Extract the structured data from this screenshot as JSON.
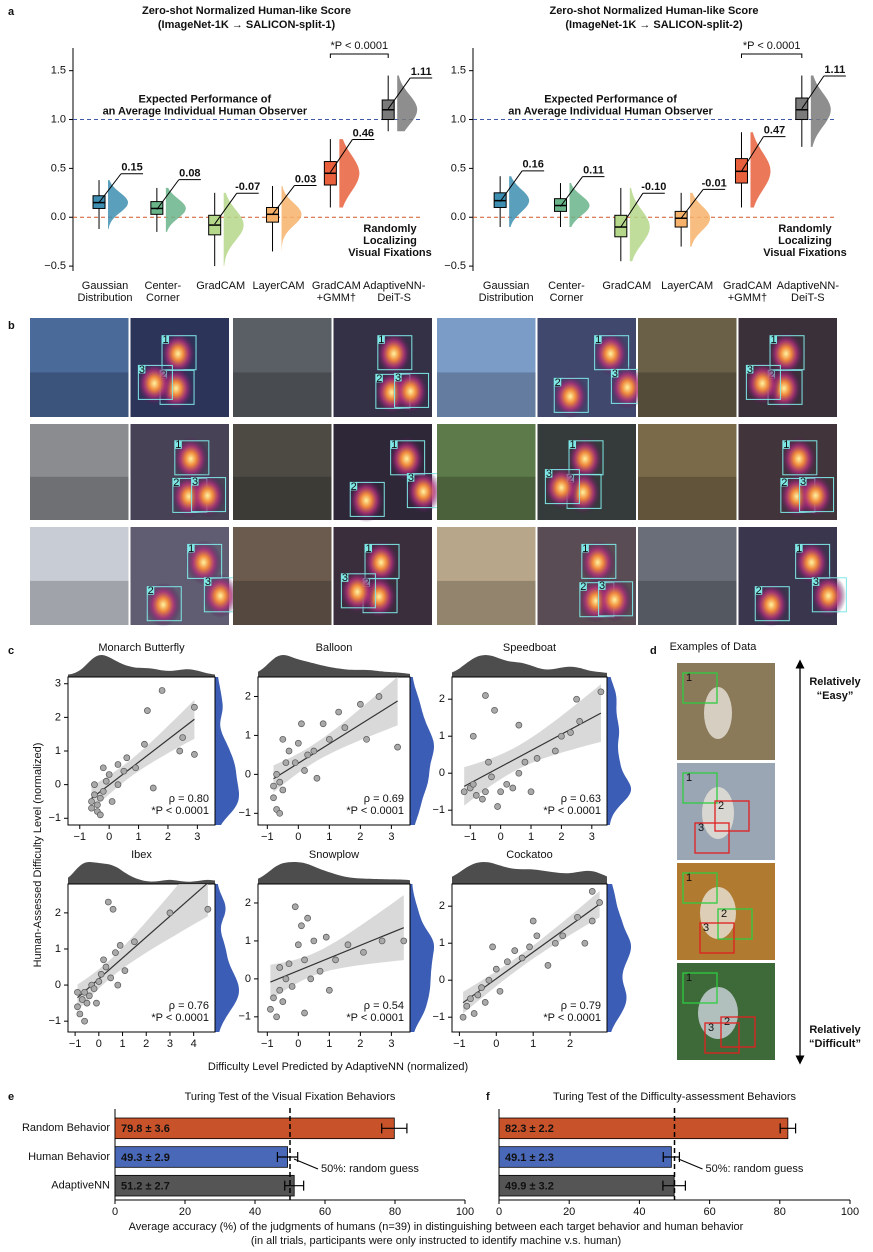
{
  "panel_labels": [
    "a",
    "b",
    "c",
    "d",
    "e",
    "f"
  ],
  "image_grid": {
    "fixation_labels": [
      "1",
      "2",
      "3"
    ]
  },
  "examples": {
    "title": "Examples of Data",
    "easy": [
      "Relatively",
      "“Easy”"
    ],
    "difficult": [
      "Relatively",
      "“Difficult”"
    ]
  },
  "shared_labels": {
    "c_y": "Human-Assessed Difficulty Level (normalized)",
    "c_x": "Difficulty Level Predicted by AdaptiveNN (normalized)",
    "ef_x": [
      "Average accuracy (%) of the judgments of humans (n=39) in distinguishing between each target behavior and human behavior",
      "(in all trials, participants were only instructed to identify machine v.s. human)"
    ]
  },
  "chart_data": [
    {
      "type": "box",
      "title": [
        "Zero-shot Normalized Human-like Score",
        "(ImageNet-1K → SALICON-split-1)"
      ],
      "categories": [
        [
          "Gaussian",
          "Distribution"
        ],
        [
          "Center-",
          "Corner"
        ],
        [
          "GradCAM"
        ],
        [
          "LayerCAM"
        ],
        [
          "GradCAM",
          "+GMM†"
        ],
        [
          "AdaptiveNN-",
          "DeiT-S"
        ]
      ],
      "ylim": [
        -0.55,
        1.65
      ],
      "yticks": [
        {
          "value": -0.5,
          "label": "−0.5"
        },
        {
          "value": 0,
          "label": "0.0"
        },
        0.5,
        {
          "value": 1,
          "label": "1.0"
        },
        1.5
      ],
      "boxes": [
        {
          "color": "#3d8eb0",
          "whislo": -0.12,
          "q1": 0.09,
          "median": 0.15,
          "q3": 0.22,
          "whishi": 0.38
        },
        {
          "color": "#6ab48a",
          "whislo": -0.15,
          "q1": 0.03,
          "median": 0.09,
          "q3": 0.16,
          "whishi": 0.3
        },
        {
          "color": "#b5d78a",
          "whislo": -0.5,
          "q1": -0.18,
          "median": -0.08,
          "q3": 0.02,
          "whishi": 0.25
        },
        {
          "color": "#f6b26b",
          "whislo": -0.35,
          "q1": -0.05,
          "median": 0.03,
          "q3": 0.1,
          "whishi": 0.32
        },
        {
          "color": "#e8603c",
          "whislo": 0.1,
          "q1": 0.33,
          "median": 0.45,
          "q3": 0.57,
          "whishi": 0.8
        },
        {
          "color": "#7a7a7a",
          "whislo": 0.88,
          "q1": 1.0,
          "median": 1.1,
          "q3": 1.2,
          "whishi": 1.45
        }
      ],
      "means": [
        0.15,
        0.08,
        -0.07,
        0.03,
        0.46,
        1.11
      ],
      "value_labels": [
        "0.15",
        "0.08",
        "-0.07",
        "0.03",
        "0.46",
        "1.11"
      ],
      "reference_lines": [
        {
          "value": 1,
          "color": "#3e5aa8",
          "label": [
            "Expected Performance of",
            "an Average Individual Human Observer"
          ]
        },
        {
          "value": 0,
          "color": "#d0582a",
          "label": [
            "Randomly",
            "Localizing",
            "Visual Fixations"
          ]
        }
      ],
      "significance": "*P < 0.0001"
    },
    {
      "type": "box",
      "title": [
        "Zero-shot Normalized Human-like Score",
        "(ImageNet-1K → SALICON-split-2)"
      ],
      "categories": [
        [
          "Gaussian",
          "Distribution"
        ],
        [
          "Center-",
          "Corner"
        ],
        [
          "GradCAM"
        ],
        [
          "LayerCAM"
        ],
        [
          "GradCAM",
          "+GMM†"
        ],
        [
          "AdaptiveNN-",
          "DeiT-S"
        ]
      ],
      "ylim": [
        -0.55,
        1.65
      ],
      "yticks": [
        {
          "value": -0.5,
          "label": "−0.5"
        },
        {
          "value": 0,
          "label": "0.0"
        },
        0.5,
        {
          "value": 1,
          "label": "1.0"
        },
        1.5
      ],
      "boxes": [
        {
          "color": "#3d8eb0",
          "whislo": -0.1,
          "q1": 0.1,
          "median": 0.17,
          "q3": 0.25,
          "whishi": 0.42
        },
        {
          "color": "#6ab48a",
          "whislo": -0.1,
          "q1": 0.06,
          "median": 0.12,
          "q3": 0.19,
          "whishi": 0.35
        },
        {
          "color": "#b5d78a",
          "whislo": -0.45,
          "q1": -0.2,
          "median": -0.1,
          "q3": 0.02,
          "whishi": 0.3
        },
        {
          "color": "#f6b26b",
          "whislo": -0.3,
          "q1": -0.1,
          "median": -0.01,
          "q3": 0.06,
          "whishi": 0.25
        },
        {
          "color": "#e8603c",
          "whislo": 0.1,
          "q1": 0.35,
          "median": 0.47,
          "q3": 0.6,
          "whishi": 0.87
        },
        {
          "color": "#7a7a7a",
          "whislo": 0.72,
          "q1": 1.0,
          "median": 1.1,
          "q3": 1.22,
          "whishi": 1.45
        }
      ],
      "means": [
        0.16,
        0.11,
        -0.1,
        -0.01,
        0.47,
        1.11
      ],
      "value_labels": [
        "0.16",
        "0.11",
        "-0.10",
        "-0.01",
        "0.47",
        "1.11"
      ],
      "reference_lines": [
        {
          "value": 1,
          "color": "#3e5aa8",
          "label": [
            "Expected Performance of",
            "an Average Individual Human Observer"
          ]
        },
        {
          "value": 0,
          "color": "#d0582a",
          "label": [
            "Randomly",
            "Localizing",
            "Visual Fixations"
          ]
        }
      ],
      "significance": "*P < 0.0001"
    },
    {
      "type": "scatter",
      "title": "Monarch Butterfly",
      "annotations": [
        "ρ = 0.80",
        "*P < 0.0001"
      ],
      "color": "#a9a9a9",
      "marginal_colors": {
        "x": "#4d4d4d",
        "y": "#3b5db5"
      },
      "x": [
        -0.6,
        -0.5,
        -0.4,
        -0.3,
        -0.5,
        -0.2,
        -0.4,
        -0.1,
        0,
        0.3,
        0.5,
        0.9,
        1.2,
        1.5,
        1.8,
        2.5,
        2.4,
        2.9,
        0.3,
        -0.6,
        -0.3,
        0.1,
        -0.2,
        0.6,
        2.9,
        1.3
      ],
      "y": [
        -0.5,
        -0.3,
        -0.6,
        -0.4,
        0,
        -0.2,
        -0.8,
        0.1,
        0.3,
        0.6,
        0.4,
        0.5,
        1.2,
        -0.1,
        2.8,
        1.4,
        1,
        0.9,
        0,
        -0.7,
        -0.9,
        -0.5,
        0.5,
        0.8,
        2.3,
        2.2
      ],
      "xlim": [
        -1.4,
        3.6
      ],
      "ylim": [
        -1.2,
        3.2
      ],
      "xticks": [
        {
          "value": -1,
          "label": "−1"
        },
        0,
        1,
        2,
        3
      ],
      "yticks": [
        {
          "value": -1,
          "label": "−1"
        },
        0,
        1,
        2,
        3
      ]
    },
    {
      "type": "scatter",
      "title": "Balloon",
      "annotations": [
        "ρ = 0.69",
        "*P < 0.0001"
      ],
      "color": "#a9a9a9",
      "marginal_colors": {
        "x": "#4d4d4d",
        "y": "#3b5db5"
      },
      "x": [
        -0.8,
        -0.7,
        -0.6,
        -0.5,
        -0.8,
        -0.7,
        -0.4,
        -0.3,
        -0.1,
        0,
        0.2,
        0.3,
        0.5,
        0.8,
        1,
        1.3,
        1.5,
        2,
        2.2,
        0.1,
        -0.5,
        3.2,
        2.6,
        -0.6,
        0.6
      ],
      "y": [
        -0.6,
        -0.9,
        -1,
        -0.4,
        -0.3,
        0,
        0.3,
        0.6,
        0.3,
        0.8,
        0.1,
        0.5,
        0.6,
        1.3,
        0.9,
        1.6,
        1.2,
        1.8,
        0.9,
        1.3,
        0.9,
        0.7,
        2,
        -0.2,
        -0.1
      ],
      "xlim": [
        -1.3,
        3.6
      ],
      "ylim": [
        -1.3,
        2.5
      ],
      "xticks": [
        {
          "value": -1,
          "label": "−1"
        },
        0,
        1,
        2,
        3
      ],
      "yticks": [
        {
          "value": -1,
          "label": "−1"
        },
        0,
        1,
        2
      ]
    },
    {
      "type": "scatter",
      "title": "Speedboat",
      "annotations": [
        "ρ = 0.63",
        "*P < 0.0001"
      ],
      "color": "#a9a9a9",
      "marginal_colors": {
        "x": "#4d4d4d",
        "y": "#3b5db5"
      },
      "x": [
        -1.2,
        -1,
        -0.8,
        -0.6,
        -0.9,
        -0.5,
        -0.3,
        0,
        0.2,
        0.4,
        0.6,
        0.8,
        1,
        1.2,
        1.8,
        2,
        2.3,
        2.6,
        2.5,
        3.3,
        -0.5,
        -0.2,
        0.6,
        -0.9,
        -0.4,
        -0.1
      ],
      "y": [
        -0.5,
        -0.4,
        -0.6,
        -0.7,
        -0.3,
        -0.5,
        -0.1,
        -0.5,
        -0.3,
        -0.4,
        0,
        0.3,
        -0.5,
        0.4,
        0.6,
        1,
        1.1,
        1.4,
        2,
        2.2,
        2.1,
        1.7,
        1.3,
        1,
        0.3,
        -0.9
      ],
      "xlim": [
        -1.6,
        3.5
      ],
      "ylim": [
        -1.4,
        2.6
      ],
      "xticks": [
        {
          "value": -1,
          "label": "−1"
        },
        0,
        1,
        2,
        3
      ],
      "yticks": [
        {
          "value": -1,
          "label": "−1"
        },
        0,
        1,
        2
      ]
    },
    {
      "type": "scatter",
      "title": "Ibex",
      "annotations": [
        "ρ = 0.76",
        "*P < 0.0001"
      ],
      "color": "#a9a9a9",
      "marginal_colors": {
        "x": "#4d4d4d",
        "y": "#3b5db5"
      },
      "x": [
        -0.9,
        -0.8,
        -0.7,
        -0.6,
        -0.5,
        -0.4,
        -0.3,
        -0.2,
        0,
        0.1,
        0.3,
        0.5,
        0.7,
        0.9,
        1.1,
        0.4,
        0.6,
        1.5,
        3,
        4.6,
        -0.6,
        -0.9,
        0.2,
        0.8,
        -0.1
      ],
      "y": [
        -0.6,
        -0.8,
        -0.4,
        -0.2,
        -0.5,
        -0.3,
        0,
        -0.1,
        0.1,
        0.3,
        0.5,
        0.2,
        0.9,
        1.1,
        0.4,
        2.3,
        2.1,
        1.2,
        2,
        2.1,
        -1,
        -0.2,
        0.7,
        0,
        -0.5
      ],
      "xlim": [
        -1.3,
        4.9
      ],
      "ylim": [
        -1.3,
        2.8
      ],
      "xticks": [
        {
          "value": -1,
          "label": "−1"
        },
        0,
        1,
        2,
        3,
        4
      ],
      "yticks": [
        {
          "value": -1,
          "label": "−1"
        },
        0,
        1,
        2
      ]
    },
    {
      "type": "scatter",
      "title": "Snowplow",
      "annotations": [
        "ρ = 0.54",
        "*P < 0.0001"
      ],
      "color": "#a9a9a9",
      "marginal_colors": {
        "x": "#4d4d4d",
        "y": "#3b5db5"
      },
      "x": [
        -0.9,
        -0.8,
        -0.7,
        -0.6,
        -0.5,
        -0.4,
        -0.3,
        -0.2,
        0,
        0.1,
        0.2,
        0.3,
        0.5,
        0.7,
        0.9,
        1.2,
        1.6,
        2.1,
        2.7,
        3.4,
        -0.1,
        0.4,
        -0.6,
        1,
        0.2
      ],
      "y": [
        -0.8,
        -0.5,
        -1,
        -0.3,
        -0.6,
        0,
        0.4,
        -0.2,
        0.9,
        1.4,
        0.5,
        1.6,
        1,
        0.2,
        1.1,
        0.5,
        0.9,
        0.7,
        1,
        1,
        1.9,
        0,
        0.3,
        -0.3,
        -0.9
      ],
      "xlim": [
        -1.3,
        3.6
      ],
      "ylim": [
        -1.4,
        2.5
      ],
      "xticks": [
        {
          "value": -1,
          "label": "−1"
        },
        0,
        1,
        2,
        3
      ],
      "yticks": [
        {
          "value": -1,
          "label": "−1"
        },
        0,
        1,
        2
      ]
    },
    {
      "type": "scatter",
      "title": "Cockatoo",
      "annotations": [
        "ρ = 0.79",
        "*P < 0.0001"
      ],
      "color": "#a9a9a9",
      "marginal_colors": {
        "x": "#4d4d4d",
        "y": "#3b5db5"
      },
      "x": [
        -0.9,
        -0.8,
        -0.7,
        -0.6,
        -0.5,
        -0.4,
        -0.3,
        -0.2,
        0,
        0.1,
        0.3,
        0.5,
        0.7,
        0.9,
        1.1,
        1.4,
        1.6,
        1.8,
        2.2,
        2.4,
        2.6,
        2.6,
        2.8,
        1,
        -0.1
      ],
      "y": [
        -1,
        -0.7,
        -0.5,
        -0.9,
        -0.4,
        -0.2,
        -0.6,
        0,
        0.3,
        -0.3,
        0.5,
        0.8,
        0.6,
        0.9,
        1.2,
        0.4,
        1,
        1.2,
        1.7,
        1,
        1.6,
        2.4,
        2.1,
        1.6,
        0.9
      ],
      "xlim": [
        -1.2,
        3
      ],
      "ylim": [
        -1.4,
        2.6
      ],
      "xticks": [
        {
          "value": -1,
          "label": "−1"
        },
        0,
        1,
        2
      ],
      "yticks": [
        {
          "value": -1,
          "label": "−1"
        },
        0,
        1,
        2
      ]
    },
    {
      "type": "hbar",
      "title": "Turing Test of the Visual Fixation Behaviors",
      "categories": [
        "Random Behavior",
        "Human Behavior",
        "AdaptiveNN"
      ],
      "values": [
        79.8,
        49.3,
        51.2
      ],
      "errors": [
        3.6,
        2.9,
        2.7
      ],
      "value_labels": [
        "79.8 ± 3.6",
        "49.3 ± 2.9",
        "51.2 ± 2.7"
      ],
      "colors": [
        "#c8522a",
        "#4a68b8",
        "#555555"
      ],
      "xlim": [
        0,
        100
      ],
      "xticks": [
        0,
        20,
        40,
        60,
        80,
        100
      ],
      "reference": {
        "value": 50,
        "label": "50%: random guess"
      }
    },
    {
      "type": "hbar",
      "title": "Turing Test of the Difficulty-assessment Behaviors",
      "categories": [
        null,
        null,
        null
      ],
      "values": [
        82.3,
        49.1,
        49.9
      ],
      "errors": [
        2.2,
        2.3,
        3.2
      ],
      "value_labels": [
        "82.3 ± 2.2",
        "49.1 ± 2.3",
        "49.9 ± 3.2"
      ],
      "colors": [
        "#c8522a",
        "#4a68b8",
        "#555555"
      ],
      "xlim": [
        0,
        100
      ],
      "xticks": [
        0,
        20,
        40,
        60,
        80,
        100
      ],
      "reference": {
        "value": 50,
        "label": "50%: random guess"
      }
    }
  ]
}
